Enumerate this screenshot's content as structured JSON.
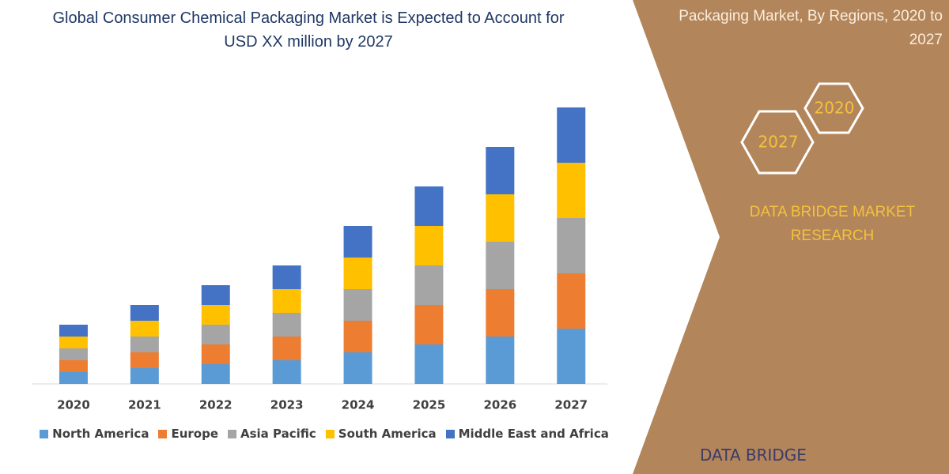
{
  "chart_data": {
    "type": "stacked-bar",
    "title": "Global Consumer Chemical Packaging Market is Expected to Account for USD XX million by 2027",
    "categories": [
      "2020",
      "2021",
      "2022",
      "2023",
      "2024",
      "2025",
      "2026",
      "2027"
    ],
    "series": [
      {
        "name": "North America",
        "color": "#5b9bd5",
        "values": [
          15,
          20,
          25,
          30,
          40,
          50,
          60,
          70
        ]
      },
      {
        "name": "Europe",
        "color": "#ed7d31",
        "values": [
          15,
          20,
          25,
          30,
          40,
          50,
          60,
          70
        ]
      },
      {
        "name": "Asia Pacific",
        "color": "#a5a5a5",
        "values": [
          15,
          20,
          25,
          30,
          40,
          50,
          60,
          70
        ]
      },
      {
        "name": "South America",
        "color": "#ffc000",
        "values": [
          15,
          20,
          25,
          30,
          40,
          50,
          60,
          70
        ]
      },
      {
        "name": "Middle East and Africa",
        "color": "#4472c4",
        "values": [
          15,
          20,
          25,
          30,
          40,
          50,
          60,
          70
        ]
      }
    ]
  },
  "panel": {
    "title": "Packaging Market, By Regions, 2020 to 2027",
    "hex_start": "2020",
    "hex_end": "2027",
    "brand": "DATA BRIDGE MARKET RESEARCH",
    "logo": "DATA BRIDGE"
  }
}
